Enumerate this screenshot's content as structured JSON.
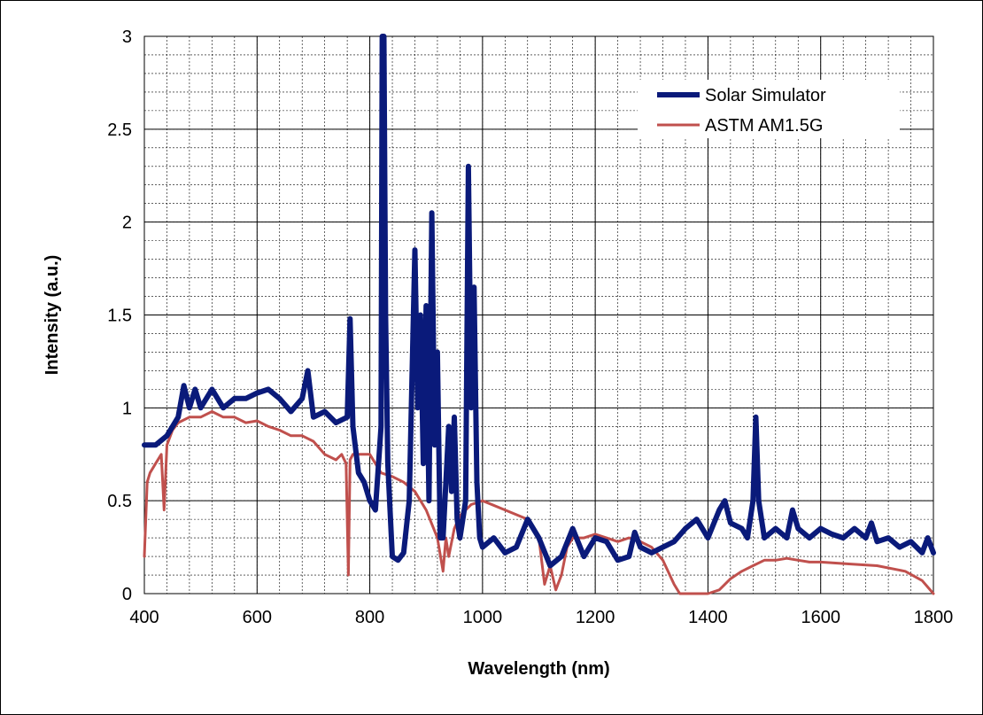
{
  "chart_data": {
    "type": "line",
    "xlabel": "Wavelength (nm)",
    "ylabel": "Intensity (a.u.)",
    "xlim": [
      400,
      1800
    ],
    "ylim": [
      0,
      3
    ],
    "x_ticks": [
      "400",
      "600",
      "800",
      "1000",
      "1200",
      "1400",
      "1600",
      "1800"
    ],
    "y_ticks": [
      "0",
      "0.5",
      "1",
      "1.5",
      "2",
      "2.5",
      "3"
    ],
    "grid": "major and minor",
    "legend_position": "top-right",
    "series": [
      {
        "name": "Solar Simulator",
        "color": "#0a1a7a",
        "x": [
          400,
          420,
          440,
          460,
          470,
          480,
          490,
          500,
          520,
          540,
          560,
          580,
          600,
          620,
          640,
          660,
          680,
          690,
          700,
          720,
          740,
          760,
          765,
          770,
          780,
          790,
          800,
          810,
          820,
          822,
          825,
          828,
          832,
          840,
          850,
          860,
          870,
          880,
          885,
          890,
          895,
          900,
          905,
          910,
          915,
          920,
          925,
          930,
          940,
          945,
          950,
          955,
          960,
          970,
          975,
          980,
          985,
          990,
          995,
          1000,
          1020,
          1040,
          1060,
          1080,
          1100,
          1120,
          1140,
          1160,
          1180,
          1200,
          1220,
          1240,
          1260,
          1270,
          1280,
          1300,
          1320,
          1340,
          1360,
          1380,
          1400,
          1420,
          1430,
          1440,
          1460,
          1470,
          1480,
          1485,
          1490,
          1500,
          1520,
          1540,
          1550,
          1560,
          1580,
          1600,
          1620,
          1640,
          1660,
          1680,
          1690,
          1700,
          1720,
          1740,
          1760,
          1780,
          1790,
          1800
        ],
        "y": [
          0.8,
          0.8,
          0.85,
          0.95,
          1.12,
          1.0,
          1.1,
          1.0,
          1.1,
          1.0,
          1.05,
          1.05,
          1.08,
          1.1,
          1.05,
          0.98,
          1.05,
          1.2,
          0.95,
          0.98,
          0.92,
          0.95,
          1.48,
          0.9,
          0.65,
          0.6,
          0.5,
          0.45,
          0.9,
          3.0,
          3.0,
          1.5,
          0.7,
          0.2,
          0.18,
          0.22,
          0.5,
          1.85,
          1.0,
          1.5,
          0.7,
          1.55,
          0.5,
          2.05,
          0.8,
          1.3,
          0.3,
          0.3,
          0.9,
          0.55,
          0.95,
          0.4,
          0.3,
          0.5,
          2.3,
          1.0,
          1.65,
          0.6,
          0.3,
          0.25,
          0.3,
          0.22,
          0.25,
          0.4,
          0.3,
          0.15,
          0.2,
          0.35,
          0.2,
          0.3,
          0.28,
          0.18,
          0.2,
          0.33,
          0.25,
          0.22,
          0.25,
          0.28,
          0.35,
          0.4,
          0.3,
          0.45,
          0.5,
          0.38,
          0.35,
          0.3,
          0.5,
          0.95,
          0.5,
          0.3,
          0.35,
          0.3,
          0.45,
          0.35,
          0.3,
          0.35,
          0.32,
          0.3,
          0.35,
          0.3,
          0.38,
          0.28,
          0.3,
          0.25,
          0.28,
          0.22,
          0.3,
          0.22
        ]
      },
      {
        "name": "ASTM AM1.5G",
        "color": "#c0504d",
        "x": [
          400,
          405,
          410,
          420,
          430,
          435,
          440,
          450,
          460,
          480,
          500,
          520,
          540,
          560,
          580,
          600,
          620,
          640,
          660,
          680,
          700,
          720,
          740,
          750,
          758,
          762,
          765,
          770,
          780,
          800,
          820,
          840,
          860,
          880,
          900,
          920,
          930,
          935,
          940,
          950,
          960,
          980,
          1000,
          1040,
          1080,
          1100,
          1110,
          1120,
          1130,
          1140,
          1150,
          1160,
          1180,
          1200,
          1220,
          1240,
          1260,
          1280,
          1300,
          1320,
          1340,
          1350,
          1360,
          1380,
          1400,
          1420,
          1440,
          1460,
          1480,
          1500,
          1520,
          1540,
          1560,
          1580,
          1600,
          1650,
          1700,
          1750,
          1780,
          1800
        ],
        "y": [
          0.2,
          0.6,
          0.65,
          0.7,
          0.75,
          0.45,
          0.8,
          0.88,
          0.92,
          0.95,
          0.95,
          0.98,
          0.95,
          0.95,
          0.92,
          0.93,
          0.9,
          0.88,
          0.85,
          0.85,
          0.82,
          0.75,
          0.72,
          0.75,
          0.7,
          0.1,
          0.72,
          0.75,
          0.75,
          0.75,
          0.65,
          0.63,
          0.6,
          0.55,
          0.45,
          0.3,
          0.12,
          0.3,
          0.2,
          0.35,
          0.42,
          0.48,
          0.5,
          0.45,
          0.4,
          0.3,
          0.05,
          0.15,
          0.02,
          0.1,
          0.25,
          0.3,
          0.3,
          0.32,
          0.3,
          0.28,
          0.3,
          0.28,
          0.25,
          0.18,
          0.05,
          0.0,
          0.0,
          0.0,
          0.0,
          0.02,
          0.08,
          0.12,
          0.15,
          0.18,
          0.18,
          0.19,
          0.18,
          0.17,
          0.17,
          0.16,
          0.15,
          0.12,
          0.07,
          0.0
        ]
      }
    ]
  }
}
